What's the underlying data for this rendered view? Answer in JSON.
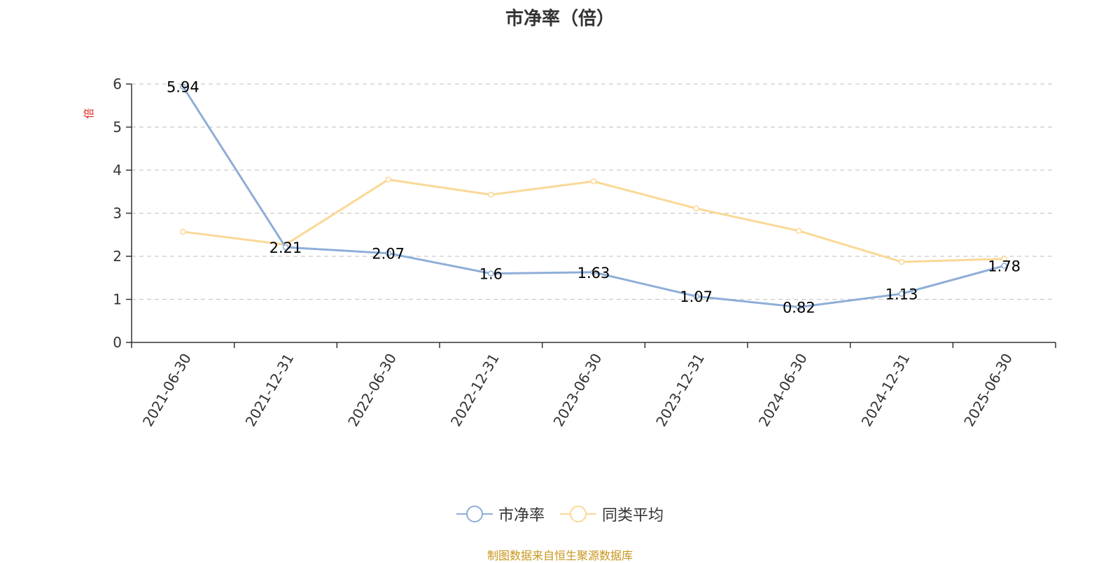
{
  "chart_data": {
    "type": "line",
    "title": "市净率（倍）",
    "ylabel": "倍",
    "ylim": [
      0,
      6
    ],
    "y_ticks": [
      0,
      1,
      2,
      3,
      4,
      5,
      6
    ],
    "grid": true,
    "legend_position": "bottom",
    "categories": [
      "2021-06-30",
      "2021-12-31",
      "2022-06-30",
      "2022-12-31",
      "2023-06-30",
      "2023-12-31",
      "2024-06-30",
      "2024-12-31",
      "2025-06-30"
    ],
    "series": [
      {
        "name": "市净率",
        "color": "#8eaed8",
        "values": [
          5.94,
          2.21,
          2.07,
          1.6,
          1.63,
          1.07,
          0.82,
          1.13,
          1.78
        ],
        "data_labels": [
          "5.94",
          "2.21",
          "2.07",
          "1.6",
          "1.63",
          "1.07",
          "0.82",
          "1.13",
          "1.78"
        ]
      },
      {
        "name": "同类平均",
        "color": "#fad896",
        "values": [
          2.57,
          2.27,
          3.78,
          3.43,
          3.74,
          3.11,
          2.59,
          1.87,
          1.94
        ]
      }
    ]
  },
  "y_unit_color": "#e02020",
  "source_note": "制图数据来自恒生聚源数据库",
  "source_note_color": "#c8961e"
}
